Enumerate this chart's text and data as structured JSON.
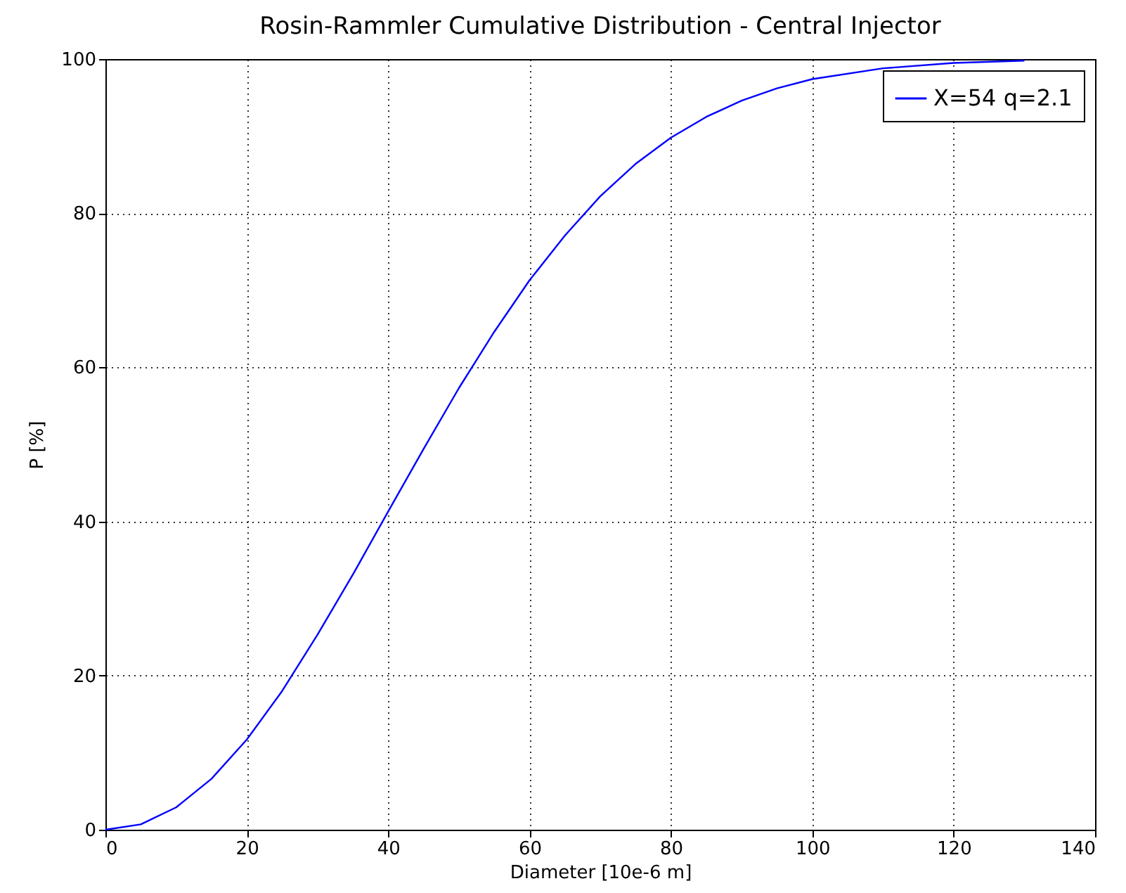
{
  "chart_data": {
    "type": "line",
    "title": "Rosin-Rammler Cumulative Distribution - Central Injector",
    "xlabel": "Diameter [10e-6 m]",
    "ylabel": "P [%]",
    "x": [
      0,
      5,
      10,
      15,
      20,
      25,
      30,
      35,
      40,
      45,
      50,
      55,
      60,
      65,
      70,
      75,
      80,
      85,
      90,
      95,
      100,
      110,
      120,
      130
    ],
    "series": [
      {
        "name": "X=54 q=2.1",
        "color": "#0000ff",
        "values": [
          0,
          0.7,
          2.9,
          6.6,
          11.7,
          18.0,
          25.3,
          33.1,
          41.3,
          49.4,
          57.3,
          64.6,
          71.3,
          77.1,
          82.2,
          86.4,
          89.8,
          92.5,
          94.6,
          96.2,
          97.4,
          98.8,
          99.5,
          99.8
        ]
      }
    ],
    "xlim": [
      0,
      140
    ],
    "xticks": [
      0,
      20,
      40,
      60,
      80,
      100,
      120,
      140
    ],
    "ylim": [
      0,
      100
    ],
    "yticks": [
      0,
      20,
      40,
      60,
      80,
      100
    ],
    "grid": true,
    "legend": "top right",
    "line_style": "solid",
    "marker": "none"
  }
}
